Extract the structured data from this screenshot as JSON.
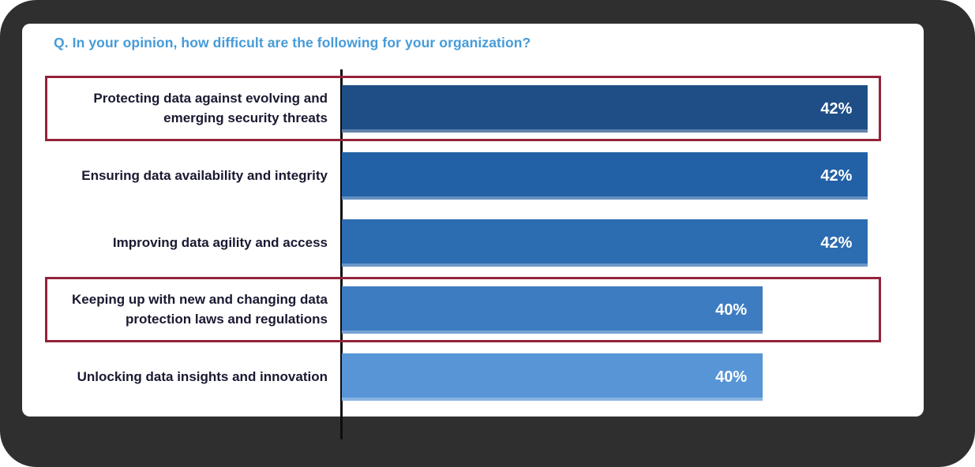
{
  "frame": {
    "background_color": "#2f2f2f",
    "panel_background_color": "#ffffff"
  },
  "chart_data": {
    "type": "bar",
    "orientation": "horizontal",
    "title": "Q. In your opinion, how difficult are the following for your organization?",
    "title_color": "#459bd9",
    "categories": [
      "Protecting data against evolving and emerging security threats",
      "Ensuring data availability and integrity",
      "Improving data agility and access",
      "Keeping up with new and changing data protection laws and regulations",
      "Unlocking data insights and innovation"
    ],
    "values": [
      42,
      42,
      42,
      40,
      40
    ],
    "value_labels": [
      "42%",
      "42%",
      "42%",
      "40%",
      "40%"
    ],
    "value_suffix": "%",
    "bar_colors": [
      "#1f4e87",
      "#2261a5",
      "#2c6cb0",
      "#3d7cc1",
      "#5795d6"
    ],
    "bar_widths_pct": [
      98,
      98,
      98,
      78.4,
      78.4
    ],
    "highlighted_rows": [
      0,
      3
    ],
    "highlight_color": "#932339",
    "label_color": "#191931",
    "axis": {
      "line_color": "#0d0d0d",
      "baseline_visible": true
    },
    "xlim": [
      0,
      46
    ],
    "gridlines": false,
    "legend": "none",
    "value_label_position": "inside-end",
    "value_label_color": "#ffffff"
  }
}
